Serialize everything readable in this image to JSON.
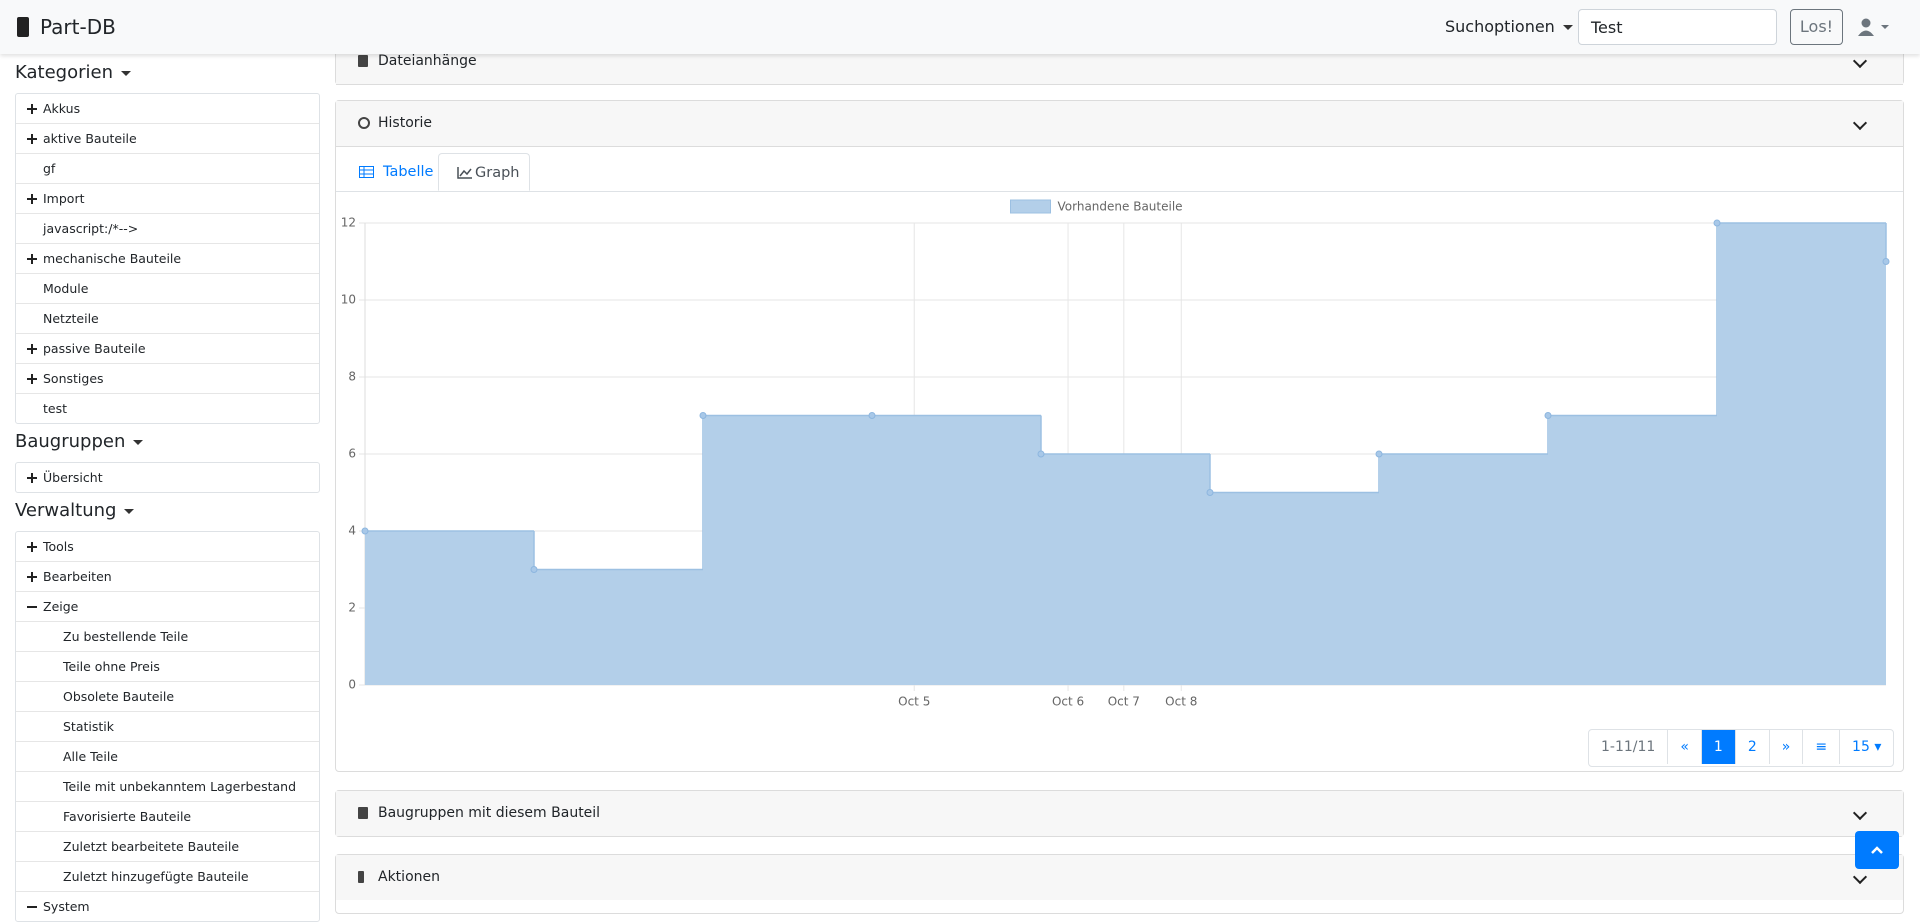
{
  "navbar": {
    "brand": "Part-DB",
    "search_options": "Suchoptionen",
    "search_value": "Test",
    "search_button": "Los!"
  },
  "sidebar": {
    "categories": {
      "title": "Kategorien",
      "items": [
        "Akkus",
        "aktive Bauteile",
        "gf",
        "Import",
        "javascript:/*-->",
        "mechanische Bauteile",
        "Module",
        "Netzteile",
        "passive Bauteile",
        "Sonstiges",
        "test"
      ]
    },
    "assemblies": {
      "title": "Baugruppen",
      "items": [
        "Übersicht"
      ]
    },
    "admin": {
      "title": "Verwaltung",
      "items": [
        "Tools",
        "Bearbeiten",
        "Zeige"
      ],
      "show_items": [
        "Zu bestellende Teile",
        "Teile ohne Preis",
        "Obsolete Bauteile",
        "Statistik",
        "Alle Teile",
        "Teile mit unbekanntem Lagerbestand",
        "Favorisierte Bauteile",
        "Zuletzt bearbeitete Bauteile",
        "Zuletzt hinzugefügte Bauteile"
      ],
      "system": "System"
    }
  },
  "panels": {
    "attachments": "Dateianhänge",
    "history": "Historie",
    "assemblies": "Baugruppen mit diesem Bauteil",
    "actions": "Aktionen"
  },
  "tabs": [
    "Tabelle",
    "Graph"
  ],
  "pagination": {
    "range": "1-11/11",
    "pages": [
      1,
      2
    ],
    "page_size": 15
  },
  "chart_data": {
    "type": "step-area",
    "series": [
      {
        "name": "Vorhandene Bauteile",
        "color": "#b3cfe9",
        "values": [
          4,
          3,
          7,
          7,
          6,
          5,
          6,
          7,
          12,
          11
        ]
      }
    ],
    "x": [
      0,
      1,
      2,
      3,
      4,
      5,
      6,
      7,
      8,
      9
    ],
    "xlim": [
      0,
      9
    ],
    "xticks": [
      {
        "value": 3.25,
        "label": "Oct 5"
      },
      {
        "value": 4.16,
        "label": "Oct 6"
      },
      {
        "value": 4.49,
        "label": "Oct 7"
      },
      {
        "value": 4.83,
        "label": "Oct 8"
      }
    ],
    "ylim": [
      0,
      12
    ],
    "yticks": [
      0,
      2,
      4,
      6,
      8,
      10,
      12
    ],
    "grid": true
  }
}
